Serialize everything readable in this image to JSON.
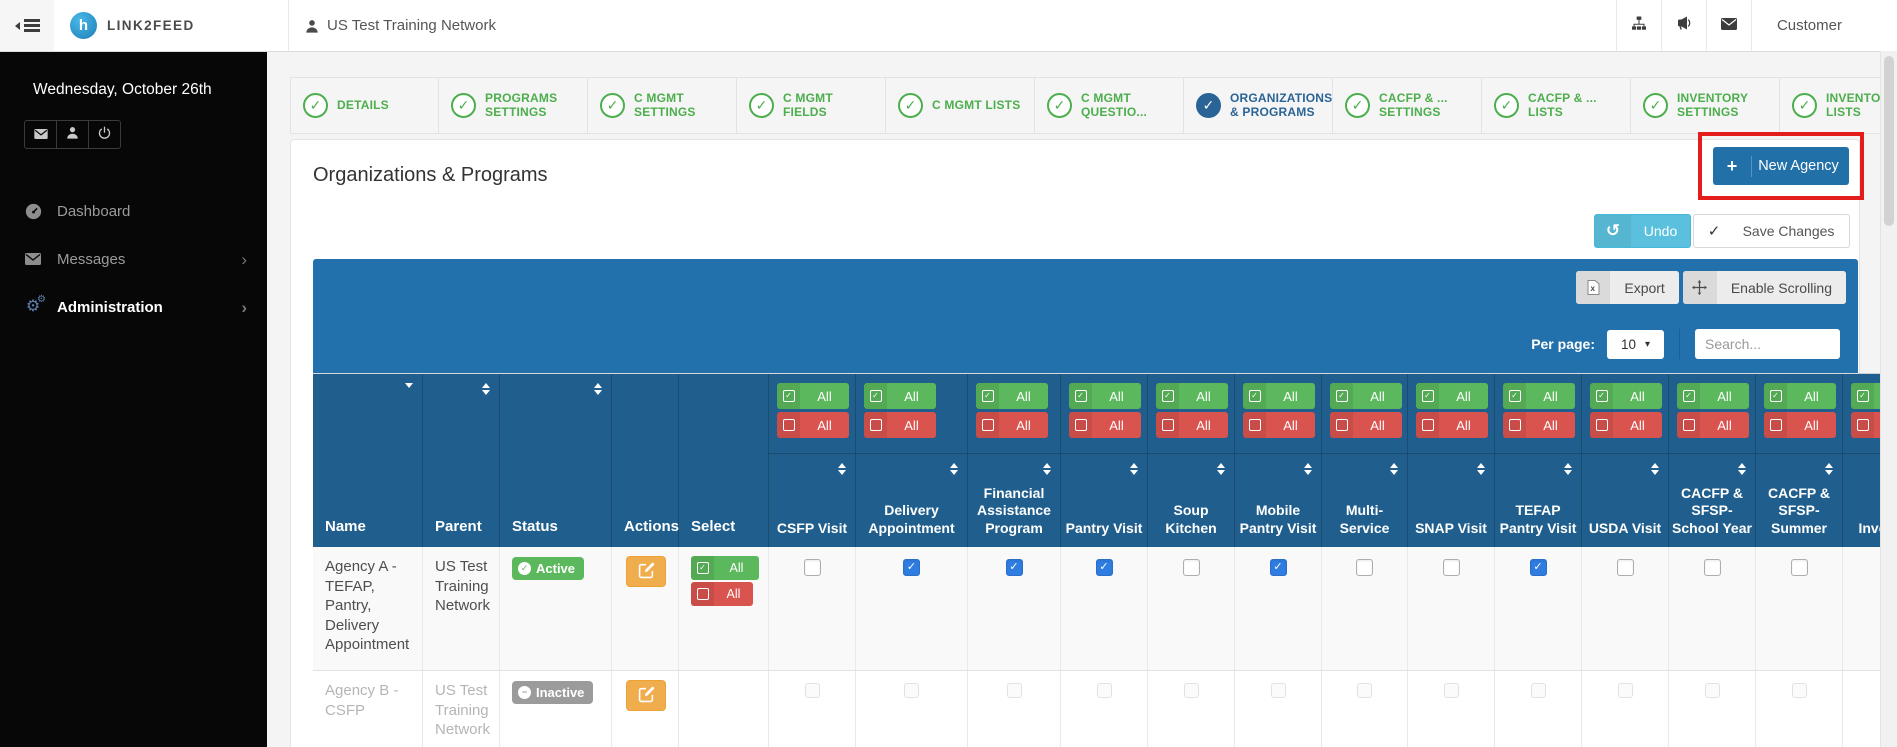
{
  "topbar": {
    "brand": "LINK2FEED",
    "network_name": "US Test Training Network",
    "customer_label": "Customer"
  },
  "sidebar": {
    "date": "Wednesday, October 26th",
    "menu": [
      {
        "label": "Dashboard",
        "icon": "dashboard-icon",
        "chevron": false,
        "active": false
      },
      {
        "label": "Messages",
        "icon": "envelope-icon",
        "chevron": true,
        "active": false
      },
      {
        "label": "Administration",
        "icon": "gears-icon",
        "chevron": true,
        "active": true
      }
    ]
  },
  "tabs": [
    {
      "label": "DETAILS",
      "active": false
    },
    {
      "label": "PROGRAMS SETTINGS",
      "active": false
    },
    {
      "label": "C MGMT SETTINGS",
      "active": false
    },
    {
      "label": "C MGMT FIELDS",
      "active": false
    },
    {
      "label": "C MGMT LISTS",
      "active": false
    },
    {
      "label": "C MGMT QUESTIO...",
      "active": false
    },
    {
      "label": "ORGANIZATIONS & PROGRAMS",
      "active": true
    },
    {
      "label": "CACFP & ... SETTINGS",
      "active": false
    },
    {
      "label": "CACFP & ... LISTS",
      "active": false
    },
    {
      "label": "INVENTORY SETTINGS",
      "active": false
    },
    {
      "label": "INVENTORY LISTS",
      "active": false
    }
  ],
  "content": {
    "title": "Organizations & Programs",
    "buttons": {
      "new_agency": "New Agency",
      "undo": "Undo",
      "save": "Save Changes",
      "export": "Export",
      "enable_scrolling": "Enable Scrolling"
    },
    "per_page_label": "Per page:",
    "per_page_value": "10",
    "search_placeholder": "Search..."
  },
  "table": {
    "fixed_columns": [
      {
        "label": "Name",
        "sort": "desc"
      },
      {
        "label": "Parent",
        "sort": "both"
      },
      {
        "label": "Status",
        "sort": "both"
      },
      {
        "label": "Actions",
        "sort": "none"
      },
      {
        "label": "Select",
        "sort": "none"
      }
    ],
    "select_all_label": "All",
    "deselect_all_label": "All",
    "program_columns": [
      "CSFP Visit",
      "Delivery Appointment",
      "Financial Assistance Program",
      "Pantry Visit",
      "Soup Kitchen",
      "Mobile Pantry Visit",
      "Multi-Service",
      "SNAP Visit",
      "TEFAP Pantry Visit",
      "USDA Visit",
      "CACFP & SFSP-School Year",
      "CACFP & SFSP-Summer",
      "Inventory"
    ],
    "rows": [
      {
        "name": "Agency A - TEFAP, Pantry, Delivery Appointment",
        "parent": "US Test Training Network",
        "status": "Active",
        "status_type": "active",
        "has_select": true,
        "disabled": false,
        "checks": [
          false,
          true,
          true,
          true,
          false,
          true,
          false,
          false,
          true,
          false,
          false,
          false,
          false
        ]
      },
      {
        "name": "Agency B - CSFP",
        "parent": "US Test Training Network",
        "status": "Inactive",
        "status_type": "inactive",
        "has_select": false,
        "disabled": true,
        "checks": [
          false,
          false,
          false,
          false,
          false,
          false,
          false,
          false,
          false,
          false,
          false,
          false,
          false
        ]
      }
    ]
  },
  "colors": {
    "toolbar_blue": "#2271ad",
    "header_blue": "#205f8d",
    "active_tab_blue": "#2a6496",
    "tab_green": "#4cae4c",
    "success_green": "#5cb85c",
    "danger_red": "#d9534f",
    "warning_orange": "#f0ad4e",
    "info_cyan": "#5bc0de",
    "inactive_grey": "#9b9b9b",
    "annotation_red": "#e41c1c",
    "checkbox_checked_blue": "#2f7de1"
  }
}
